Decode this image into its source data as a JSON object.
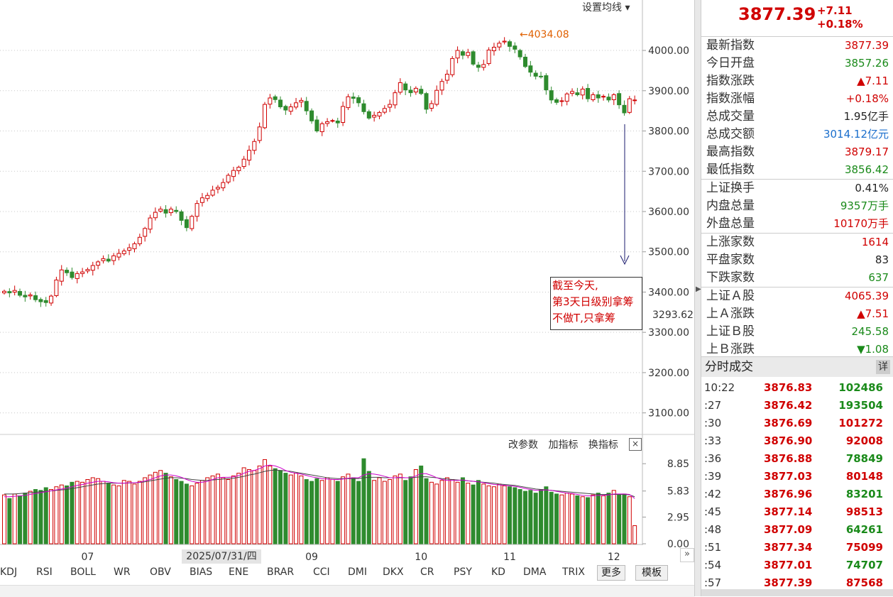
{
  "top_menu": "设置均线",
  "peak_label": "←4034.08",
  "current_label": "3293.62",
  "annotation": [
    "截至今天,",
    "第3天日级别拿筹",
    "不做T,只拿筹"
  ],
  "price_axis": {
    "min": 3050,
    "max": 4090,
    "ticks": [
      "4000.00",
      "3900.00",
      "3800.00",
      "3700.00",
      "3600.00",
      "3500.00",
      "3400.00",
      "3300.00",
      "3200.00",
      "3100.00"
    ],
    "tick_values": [
      4000,
      3900,
      3800,
      3700,
      3600,
      3500,
      3400,
      3300,
      3200,
      3100
    ]
  },
  "volume_axis": {
    "ticks": [
      "8.85",
      "5.83",
      "2.95",
      "0.00"
    ],
    "tick_values": [
      8.85,
      5.83,
      2.95,
      0
    ],
    "max": 10.2
  },
  "volume_toolbar": [
    "改参数",
    "加指标",
    "换指标"
  ],
  "volume_close": "×",
  "month_labels": [
    {
      "label": "07",
      "index": 16
    },
    {
      "label": "09",
      "index": 59
    },
    {
      "label": "10",
      "index": 80
    },
    {
      "label": "11",
      "index": 97
    },
    {
      "label": "12",
      "index": 117
    }
  ],
  "date_label": "2025/07/31/四",
  "indicator_tabs": [
    "KDJ",
    "RSI",
    "BOLL",
    "WR",
    "OBV",
    "BIAS",
    "ENE",
    "BRAR",
    "CCI",
    "DMI",
    "DKX",
    "CR",
    "PSY",
    "KD",
    "DMA",
    "TRIX"
  ],
  "more_button": "更多",
  "template_button": "模板",
  "colors": {
    "up": "#d00000",
    "down": "#2e8b2e",
    "ma": "#cc00cc",
    "ma2": "#444444"
  },
  "candles": {
    "close": [
      3402,
      3398,
      3404,
      3392,
      3388,
      3393,
      3381,
      3376,
      3374,
      3390,
      3430,
      3455,
      3448,
      3436,
      3446,
      3450,
      3456,
      3466,
      3475,
      3483,
      3477,
      3490,
      3496,
      3502,
      3510,
      3520,
      3536,
      3558,
      3584,
      3598,
      3606,
      3596,
      3606,
      3600,
      3578,
      3560,
      3588,
      3620,
      3634,
      3640,
      3653,
      3660,
      3672,
      3690,
      3702,
      3710,
      3730,
      3752,
      3774,
      3810,
      3866,
      3882,
      3878,
      3860,
      3852,
      3860,
      3870,
      3876,
      3850,
      3825,
      3800,
      3818,
      3823,
      3826,
      3820,
      3861,
      3885,
      3881,
      3870,
      3848,
      3832,
      3839,
      3846,
      3856,
      3866,
      3895,
      3920,
      3902,
      3895,
      3906,
      3893,
      3854,
      3868,
      3901,
      3923,
      3941,
      3980,
      4000,
      3988,
      3995,
      3966,
      3958,
      3965,
      4001,
      4008,
      4018,
      4023,
      4010,
      4003,
      3984,
      3960,
      3946,
      3936,
      3935,
      3902,
      3877,
      3871,
      3875,
      3892,
      3898,
      3890,
      3904,
      3880,
      3890,
      3882,
      3886,
      3877,
      3890,
      3865,
      3845,
      3880,
      3877
    ]
  },
  "volume": {
    "values": [
      5.4,
      5.0,
      5.5,
      5.3,
      5.6,
      5.8,
      6.0,
      5.9,
      6.2,
      6.0,
      6.3,
      6.5,
      6.4,
      6.8,
      6.9,
      6.8,
      7.1,
      7.3,
      7.2,
      6.9,
      6.7,
      6.5,
      6.4,
      7.0,
      6.9,
      6.6,
      6.9,
      7.3,
      7.6,
      7.9,
      8.1,
      7.8,
      7.4,
      7.1,
      6.9,
      6.6,
      6.4,
      6.7,
      7.0,
      7.3,
      7.5,
      7.7,
      7.3,
      7.1,
      7.5,
      7.8,
      8.4,
      8.2,
      8.1,
      8.6,
      9.3,
      8.6,
      8.3,
      8.1,
      7.8,
      7.6,
      7.8,
      7.5,
      7.1,
      6.9,
      7.2,
      7.0,
      7.3,
      7.1,
      6.9,
      7.4,
      7.7,
      7.3,
      6.9,
      9.4,
      8.0,
      7.0,
      7.3,
      6.9,
      7.1,
      7.5,
      7.7,
      7.0,
      7.4,
      8.2,
      8.6,
      7.2,
      6.8,
      6.6,
      7.0,
      7.3,
      7.1,
      6.8,
      7.3,
      6.7,
      6.5,
      7.0,
      6.6,
      6.4,
      6.3,
      6.6,
      6.4,
      6.3,
      6.2,
      6.0,
      5.8,
      5.9,
      5.6,
      6.0,
      6.3,
      5.7,
      5.5,
      5.4,
      5.6,
      5.5,
      5.3,
      5.2,
      5.1,
      5.4,
      5.6,
      5.3,
      5.6,
      5.9,
      5.4,
      5.5,
      5.2,
      2.0
    ],
    "ma1": [
      5.2,
      5.2,
      5.25,
      5.3,
      5.35,
      5.45,
      5.55,
      5.65,
      5.75,
      5.85,
      5.95,
      6.05,
      6.15,
      6.3,
      6.45,
      6.55,
      6.7,
      6.8,
      6.9,
      6.9,
      6.85,
      6.75,
      6.7,
      6.7,
      6.75,
      6.75,
      6.8,
      6.95,
      7.1,
      7.3,
      7.5,
      7.6,
      7.6,
      7.5,
      7.35,
      7.1,
      6.9,
      6.8,
      6.8,
      6.9,
      7.1,
      7.3,
      7.35,
      7.35,
      7.4,
      7.55,
      7.8,
      8.0,
      8.1,
      8.3,
      8.6,
      8.7,
      8.6,
      8.4,
      8.1,
      7.9,
      7.8,
      7.7,
      7.55,
      7.4,
      7.3,
      7.2,
      7.15,
      7.1,
      7.1,
      7.15,
      7.25,
      7.3,
      7.3,
      7.6,
      7.75,
      7.7,
      7.6,
      7.45,
      7.3,
      7.3,
      7.35,
      7.3,
      7.3,
      7.5,
      7.75,
      7.75,
      7.55,
      7.3,
      7.1,
      7.0,
      7.0,
      7.0,
      7.05,
      6.95,
      6.9,
      6.85,
      6.75,
      6.65,
      6.55,
      6.5,
      6.45,
      6.4,
      6.35,
      6.25,
      6.1,
      6.0,
      5.9,
      5.9,
      5.95,
      5.9,
      5.8,
      5.7,
      5.6,
      5.55,
      5.45,
      5.35,
      5.3,
      5.3,
      5.35,
      5.35,
      5.4,
      5.5,
      5.5,
      5.5,
      5.45,
      5.0
    ],
    "ma2": [
      5.5,
      5.5,
      5.5,
      5.55,
      5.6,
      5.65,
      5.7,
      5.75,
      5.8,
      5.85,
      5.9,
      5.95,
      6.0,
      6.1,
      6.2,
      6.3,
      6.4,
      6.5,
      6.6,
      6.65,
      6.7,
      6.7,
      6.7,
      6.7,
      6.72,
      6.74,
      6.78,
      6.85,
      6.95,
      7.05,
      7.15,
      7.25,
      7.3,
      7.3,
      7.25,
      7.2,
      7.1,
      7.05,
      7.0,
      7.0,
      7.05,
      7.1,
      7.15,
      7.2,
      7.25,
      7.35,
      7.45,
      7.6,
      7.7,
      7.85,
      8.0,
      8.1,
      8.15,
      8.1,
      8.05,
      8.0,
      7.9,
      7.8,
      7.7,
      7.6,
      7.5,
      7.4,
      7.3,
      7.25,
      7.2,
      7.2,
      7.2,
      7.2,
      7.2,
      7.3,
      7.35,
      7.35,
      7.35,
      7.3,
      7.3,
      7.3,
      7.3,
      7.3,
      7.3,
      7.35,
      7.4,
      7.4,
      7.35,
      7.3,
      7.2,
      7.15,
      7.1,
      7.05,
      7.0,
      6.95,
      6.9,
      6.85,
      6.8,
      6.75,
      6.7,
      6.6,
      6.55,
      6.5,
      6.45,
      6.35,
      6.25,
      6.15,
      6.05,
      6.0,
      5.95,
      5.9,
      5.85,
      5.8,
      5.75,
      5.7,
      5.65,
      5.6,
      5.55,
      5.5,
      5.45,
      5.45,
      5.45,
      5.45,
      5.45,
      5.45,
      5.4,
      5.2
    ]
  },
  "quote": {
    "price": "3877.39",
    "change": "+7.11",
    "change_pct": "+0.18%",
    "rows": [
      {
        "label": "最新指数",
        "value": "3877.39",
        "color": "red"
      },
      {
        "label": "今日开盘",
        "value": "3857.26",
        "color": "green"
      },
      {
        "label": "指数涨跌",
        "value": "▲7.11",
        "color": "red"
      },
      {
        "label": "指数涨幅",
        "value": "+0.18%",
        "color": "red"
      },
      {
        "label": "总成交量",
        "value": "1.95亿手",
        "color": "black"
      },
      {
        "label": "总成交额",
        "value": "3014.12亿元",
        "color": "blue"
      },
      {
        "label": "最高指数",
        "value": "3879.17",
        "color": "red"
      },
      {
        "label": "最低指数",
        "value": "3856.42",
        "color": "green"
      },
      {
        "label": "上证换手",
        "value": "0.41%",
        "color": "black"
      },
      {
        "label": "内盘总量",
        "value": "9357万手",
        "color": "green"
      },
      {
        "label": "外盘总量",
        "value": "10170万手",
        "color": "red"
      },
      {
        "label": "上涨家数",
        "value": "1614",
        "color": "red"
      },
      {
        "label": "平盘家数",
        "value": "83",
        "color": "black"
      },
      {
        "label": "下跌家数",
        "value": "637",
        "color": "green"
      },
      {
        "label": "上证Ａ股",
        "value": "4065.39",
        "color": "red"
      },
      {
        "label": "上Ａ涨跌",
        "value": "▲7.51",
        "color": "red"
      },
      {
        "label": "上证Ｂ股",
        "value": "245.58",
        "color": "green"
      },
      {
        "label": "上Ｂ涨跌",
        "value": "▼1.08",
        "color": "green"
      }
    ]
  },
  "ticks_title": "分时成交",
  "ticks_detail": "详",
  "ticks": [
    {
      "time": "10:22",
      "price": "3876.83",
      "vol": "102486",
      "up": false
    },
    {
      "time": ":27",
      "price": "3876.42",
      "vol": "193504",
      "up": false
    },
    {
      "time": ":30",
      "price": "3876.69",
      "vol": "101272",
      "up": true
    },
    {
      "time": ":33",
      "price": "3876.90",
      "vol": "92008",
      "up": true
    },
    {
      "time": ":36",
      "price": "3876.88",
      "vol": "78849",
      "up": false
    },
    {
      "time": ":39",
      "price": "3877.03",
      "vol": "80148",
      "up": true
    },
    {
      "time": ":42",
      "price": "3876.96",
      "vol": "83201",
      "up": false
    },
    {
      "time": ":45",
      "price": "3877.14",
      "vol": "98513",
      "up": true
    },
    {
      "time": ":48",
      "price": "3877.09",
      "vol": "64261",
      "up": false
    },
    {
      "time": ":51",
      "price": "3877.34",
      "vol": "75099",
      "up": true
    },
    {
      "time": ":54",
      "price": "3877.01",
      "vol": "74707",
      "up": false
    },
    {
      "time": ":57",
      "price": "3877.39",
      "vol": "87568",
      "up": true
    }
  ]
}
